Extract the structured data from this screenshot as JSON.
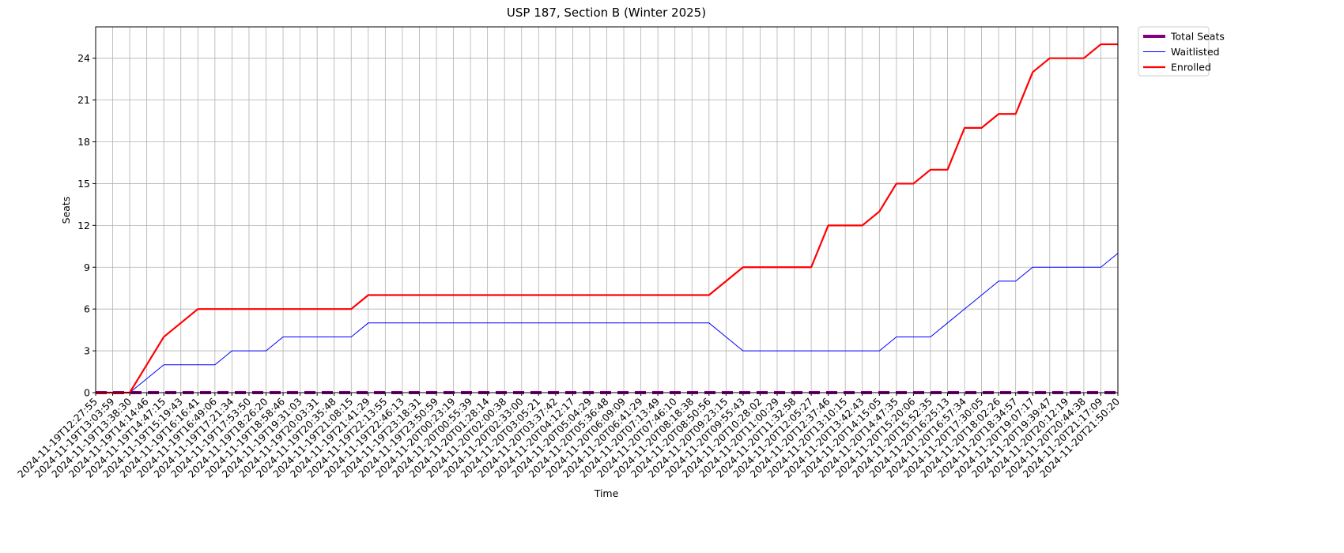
{
  "chart_data": {
    "type": "line",
    "title": "USP 187, Section B (Winter 2025)",
    "x_label": "Time",
    "y_label": "Seats",
    "categories": [
      "2024-11-19T12:27:55",
      "2024-11-19T13:03:59",
      "2024-11-19T13:38:30",
      "2024-11-19T14:14:46",
      "2024-11-19T14:47:15",
      "2024-11-19T15:19:43",
      "2024-11-19T16:16:41",
      "2024-11-19T16:49:06",
      "2024-11-19T17:21:34",
      "2024-11-19T17:53:50",
      "2024-11-19T18:26:20",
      "2024-11-19T18:58:46",
      "2024-11-19T19:31:03",
      "2024-11-19T20:03:31",
      "2024-11-19T20:35:48",
      "2024-11-19T21:08:15",
      "2024-11-19T21:41:29",
      "2024-11-19T22:13:55",
      "2024-11-19T22:46:13",
      "2024-11-19T23:18:31",
      "2024-11-19T23:50:59",
      "2024-11-20T00:23:19",
      "2024-11-20T00:55:39",
      "2024-11-20T01:28:14",
      "2024-11-20T02:00:38",
      "2024-11-20T02:33:00",
      "2024-11-20T03:05:21",
      "2024-11-20T03:37:42",
      "2024-11-20T04:12:17",
      "2024-11-20T05:04:29",
      "2024-11-20T05:36:48",
      "2024-11-20T06:09:09",
      "2024-11-20T06:41:29",
      "2024-11-20T07:13:49",
      "2024-11-20T07:46:10",
      "2024-11-20T08:18:38",
      "2024-11-20T08:50:56",
      "2024-11-20T09:23:15",
      "2024-11-20T09:55:43",
      "2024-11-20T10:28:02",
      "2024-11-20T11:00:29",
      "2024-11-20T11:32:58",
      "2024-11-20T12:05:27",
      "2024-11-20T12:37:46",
      "2024-11-20T13:10:15",
      "2024-11-20T13:42:43",
      "2024-11-20T14:15:05",
      "2024-11-20T14:47:35",
      "2024-11-20T15:20:06",
      "2024-11-20T15:52:35",
      "2024-11-20T16:25:13",
      "2024-11-20T16:57:34",
      "2024-11-20T17:30:05",
      "2024-11-20T18:02:26",
      "2024-11-20T18:34:57",
      "2024-11-20T19:07:17",
      "2024-11-20T19:39:47",
      "2024-11-20T20:12:19",
      "2024-11-20T20:44:38",
      "2024-11-20T21:17:09",
      "2024-11-20T21:50:20"
    ],
    "series": [
      {
        "name": "Total Seats",
        "color": "#800080",
        "values": [
          0,
          0,
          0,
          0,
          0,
          0,
          0,
          0,
          0,
          0,
          0,
          0,
          0,
          0,
          0,
          0,
          0,
          0,
          0,
          0,
          0,
          0,
          0,
          0,
          0,
          0,
          0,
          0,
          0,
          0,
          0,
          0,
          0,
          0,
          0,
          0,
          0,
          0,
          0,
          0,
          0,
          0,
          0,
          0,
          0,
          0,
          0,
          0,
          0,
          0,
          0,
          0,
          0,
          0,
          0,
          0,
          0,
          0,
          0,
          0,
          0
        ]
      },
      {
        "name": "Waitlisted",
        "color": "#0000ff",
        "values": [
          0,
          0,
          0,
          1,
          2,
          2,
          2,
          2,
          3,
          3,
          3,
          4,
          4,
          4,
          4,
          4,
          5,
          5,
          5,
          5,
          5,
          5,
          5,
          5,
          5,
          5,
          5,
          5,
          5,
          5,
          5,
          5,
          5,
          5,
          5,
          5,
          5,
          4,
          3,
          3,
          3,
          3,
          3,
          3,
          3,
          3,
          3,
          4,
          4,
          4,
          5,
          6,
          7,
          8,
          8,
          9,
          9,
          9,
          9,
          9,
          10
        ]
      },
      {
        "name": "Enrolled",
        "color": "#ff0000",
        "values": [
          0,
          0,
          0,
          2,
          4,
          5,
          6,
          6,
          6,
          6,
          6,
          6,
          6,
          6,
          6,
          6,
          7,
          7,
          7,
          7,
          7,
          7,
          7,
          7,
          7,
          7,
          7,
          7,
          7,
          7,
          7,
          7,
          7,
          7,
          7,
          7,
          7,
          8,
          9,
          9,
          9,
          9,
          9,
          12,
          12,
          12,
          13,
          15,
          15,
          16,
          16,
          19,
          19,
          20,
          20,
          23,
          24,
          24,
          24,
          25,
          25
        ]
      }
    ],
    "ylim": [
      0,
      26.25
    ],
    "yticks": [
      0,
      3,
      6,
      9,
      12,
      15,
      18,
      21,
      24
    ],
    "grid": true,
    "legend": "outside upper right"
  }
}
